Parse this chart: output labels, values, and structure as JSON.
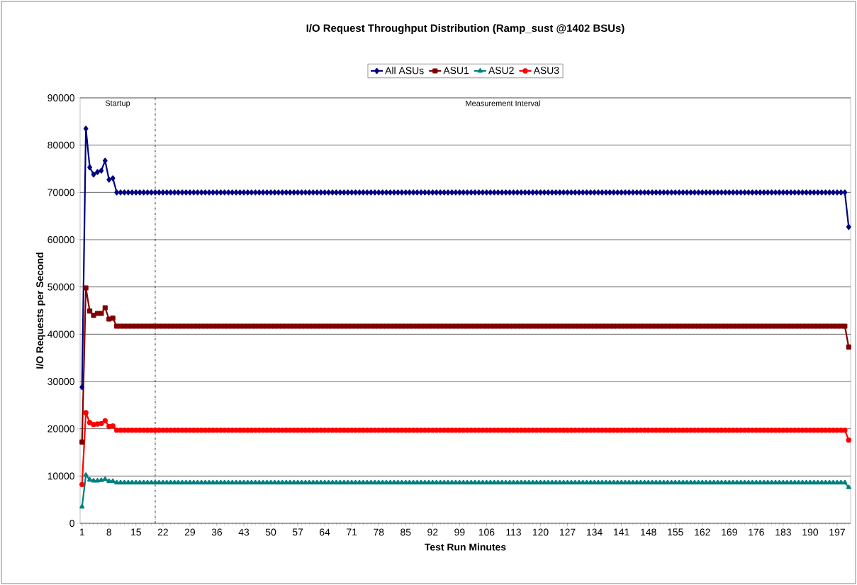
{
  "chart_data": {
    "type": "line",
    "title": "I/O Request Throughput Distribution (Ramp_sust @1402 BSUs)",
    "xlabel": "Test Run Minutes",
    "ylabel": "I/O Requests per Second",
    "x": [
      1,
      2,
      3,
      4,
      5,
      6,
      7,
      8,
      9,
      10,
      11,
      12,
      13,
      14,
      15,
      16,
      17,
      18,
      19,
      20,
      21,
      22,
      23,
      24,
      25,
      26,
      27,
      28,
      29,
      30,
      31,
      32,
      33,
      34,
      35,
      36,
      37,
      38,
      39,
      40,
      41,
      42,
      43,
      44,
      45,
      46,
      47,
      48,
      49,
      50,
      51,
      52,
      53,
      54,
      55,
      56,
      57,
      58,
      59,
      60,
      61,
      62,
      63,
      64,
      65,
      66,
      67,
      68,
      69,
      70,
      71,
      72,
      73,
      74,
      75,
      76,
      77,
      78,
      79,
      80,
      81,
      82,
      83,
      84,
      85,
      86,
      87,
      88,
      89,
      90,
      91,
      92,
      93,
      94,
      95,
      96,
      97,
      98,
      99,
      100,
      101,
      102,
      103,
      104,
      105,
      106,
      107,
      108,
      109,
      110,
      111,
      112,
      113,
      114,
      115,
      116,
      117,
      118,
      119,
      120,
      121,
      122,
      123,
      124,
      125,
      126,
      127,
      128,
      129,
      130,
      131,
      132,
      133,
      134,
      135,
      136,
      137,
      138,
      139,
      140,
      141,
      142,
      143,
      144,
      145,
      146,
      147,
      148,
      149,
      150,
      151,
      152,
      153,
      154,
      155,
      156,
      157,
      158,
      159,
      160,
      161,
      162,
      163,
      164,
      165,
      166,
      167,
      168,
      169,
      170,
      171,
      172,
      173,
      174,
      175,
      176,
      177,
      178,
      179,
      180,
      181,
      182,
      183,
      184,
      185,
      186,
      187,
      188,
      189,
      190,
      191,
      192,
      193,
      194,
      195,
      196,
      197,
      198,
      199,
      200
    ],
    "xlim": [
      0.5,
      200.5
    ],
    "xticks": [
      1,
      8,
      15,
      22,
      29,
      36,
      43,
      50,
      57,
      64,
      71,
      78,
      85,
      92,
      99,
      106,
      113,
      120,
      127,
      134,
      141,
      148,
      155,
      162,
      169,
      176,
      183,
      190,
      197
    ],
    "ylim": [
      0,
      90000
    ],
    "yticks": [
      0,
      10000,
      20000,
      30000,
      40000,
      50000,
      60000,
      70000,
      80000,
      90000
    ],
    "grid": "y",
    "legend": "top",
    "ref_lines": [
      {
        "axis": "x",
        "value": 20,
        "color": "#000000",
        "line_style": "dashed"
      }
    ],
    "annotations": [
      "Startup",
      "Measurement Interval"
    ],
    "series": [
      {
        "name": "All ASUs",
        "color": "#000080",
        "marker": "diamond",
        "values": [
          28800,
          83500,
          75300,
          73800,
          74300,
          74600,
          76700,
          72700,
          73000,
          70000,
          70000,
          70000,
          70000,
          70000,
          70000,
          70000,
          70000,
          70000,
          70000,
          70000,
          70000,
          70000,
          70000,
          70000,
          70000,
          70000,
          70000,
          70000,
          70000,
          70000,
          70000,
          70000,
          70000,
          70000,
          70000,
          70000,
          70000,
          70000,
          70000,
          70000,
          70000,
          70000,
          70000,
          70000,
          70000,
          70000,
          70000,
          70000,
          70000,
          70000,
          70000,
          70000,
          70000,
          70000,
          70000,
          70000,
          70000,
          70000,
          70000,
          70000,
          70000,
          70000,
          70000,
          70000,
          70000,
          70000,
          70000,
          70000,
          70000,
          70000,
          70000,
          70000,
          70000,
          70000,
          70000,
          70000,
          70000,
          70000,
          70000,
          70000,
          70000,
          70000,
          70000,
          70000,
          70000,
          70000,
          70000,
          70000,
          70000,
          70000,
          70000,
          70000,
          70000,
          70000,
          70000,
          70000,
          70000,
          70000,
          70000,
          70000,
          70000,
          70000,
          70000,
          70000,
          70000,
          70000,
          70000,
          70000,
          70000,
          70000,
          70000,
          70000,
          70000,
          70000,
          70000,
          70000,
          70000,
          70000,
          70000,
          70000,
          70000,
          70000,
          70000,
          70000,
          70000,
          70000,
          70000,
          70000,
          70000,
          70000,
          70000,
          70000,
          70000,
          70000,
          70000,
          70000,
          70000,
          70000,
          70000,
          70000,
          70000,
          70000,
          70000,
          70000,
          70000,
          70000,
          70000,
          70000,
          70000,
          70000,
          70000,
          70000,
          70000,
          70000,
          70000,
          70000,
          70000,
          70000,
          70000,
          70000,
          70000,
          70000,
          70000,
          70000,
          70000,
          70000,
          70000,
          70000,
          70000,
          70000,
          70000,
          70000,
          70000,
          70000,
          70000,
          70000,
          70000,
          70000,
          70000,
          70000,
          70000,
          70000,
          70000,
          70000,
          70000,
          70000,
          70000,
          70000,
          70000,
          70000,
          70000,
          70000,
          70000,
          70000,
          70000,
          70000,
          70000,
          70000,
          70000,
          62700
        ]
      },
      {
        "name": "ASU1",
        "color": "#800000",
        "marker": "square",
        "values": [
          17200,
          49800,
          44900,
          44000,
          44400,
          44400,
          45600,
          43200,
          43400,
          41700,
          41700,
          41700,
          41700,
          41700,
          41700,
          41700,
          41700,
          41700,
          41700,
          41700,
          41700,
          41700,
          41700,
          41700,
          41700,
          41700,
          41700,
          41700,
          41700,
          41700,
          41700,
          41700,
          41700,
          41700,
          41700,
          41700,
          41700,
          41700,
          41700,
          41700,
          41700,
          41700,
          41700,
          41700,
          41700,
          41700,
          41700,
          41700,
          41700,
          41700,
          41700,
          41700,
          41700,
          41700,
          41700,
          41700,
          41700,
          41700,
          41700,
          41700,
          41700,
          41700,
          41700,
          41700,
          41700,
          41700,
          41700,
          41700,
          41700,
          41700,
          41700,
          41700,
          41700,
          41700,
          41700,
          41700,
          41700,
          41700,
          41700,
          41700,
          41700,
          41700,
          41700,
          41700,
          41700,
          41700,
          41700,
          41700,
          41700,
          41700,
          41700,
          41700,
          41700,
          41700,
          41700,
          41700,
          41700,
          41700,
          41700,
          41700,
          41700,
          41700,
          41700,
          41700,
          41700,
          41700,
          41700,
          41700,
          41700,
          41700,
          41700,
          41700,
          41700,
          41700,
          41700,
          41700,
          41700,
          41700,
          41700,
          41700,
          41700,
          41700,
          41700,
          41700,
          41700,
          41700,
          41700,
          41700,
          41700,
          41700,
          41700,
          41700,
          41700,
          41700,
          41700,
          41700,
          41700,
          41700,
          41700,
          41700,
          41700,
          41700,
          41700,
          41700,
          41700,
          41700,
          41700,
          41700,
          41700,
          41700,
          41700,
          41700,
          41700,
          41700,
          41700,
          41700,
          41700,
          41700,
          41700,
          41700,
          41700,
          41700,
          41700,
          41700,
          41700,
          41700,
          41700,
          41700,
          41700,
          41700,
          41700,
          41700,
          41700,
          41700,
          41700,
          41700,
          41700,
          41700,
          41700,
          41700,
          41700,
          41700,
          41700,
          41700,
          41700,
          41700,
          41700,
          41700,
          41700,
          41700,
          41700,
          41700,
          41700,
          41700,
          41700,
          41700,
          41700,
          41700,
          41700,
          37300
        ]
      },
      {
        "name": "ASU2",
        "color": "#008080",
        "marker": "triangle",
        "values": [
          3500,
          10200,
          9200,
          9000,
          9000,
          9100,
          9300,
          8900,
          8900,
          8600,
          8600,
          8600,
          8600,
          8600,
          8600,
          8600,
          8600,
          8600,
          8600,
          8600,
          8600,
          8600,
          8600,
          8600,
          8600,
          8600,
          8600,
          8600,
          8600,
          8600,
          8600,
          8600,
          8600,
          8600,
          8600,
          8600,
          8600,
          8600,
          8600,
          8600,
          8600,
          8600,
          8600,
          8600,
          8600,
          8600,
          8600,
          8600,
          8600,
          8600,
          8600,
          8600,
          8600,
          8600,
          8600,
          8600,
          8600,
          8600,
          8600,
          8600,
          8600,
          8600,
          8600,
          8600,
          8600,
          8600,
          8600,
          8600,
          8600,
          8600,
          8600,
          8600,
          8600,
          8600,
          8600,
          8600,
          8600,
          8600,
          8600,
          8600,
          8600,
          8600,
          8600,
          8600,
          8600,
          8600,
          8600,
          8600,
          8600,
          8600,
          8600,
          8600,
          8600,
          8600,
          8600,
          8600,
          8600,
          8600,
          8600,
          8600,
          8600,
          8600,
          8600,
          8600,
          8600,
          8600,
          8600,
          8600,
          8600,
          8600,
          8600,
          8600,
          8600,
          8600,
          8600,
          8600,
          8600,
          8600,
          8600,
          8600,
          8600,
          8600,
          8600,
          8600,
          8600,
          8600,
          8600,
          8600,
          8600,
          8600,
          8600,
          8600,
          8600,
          8600,
          8600,
          8600,
          8600,
          8600,
          8600,
          8600,
          8600,
          8600,
          8600,
          8600,
          8600,
          8600,
          8600,
          8600,
          8600,
          8600,
          8600,
          8600,
          8600,
          8600,
          8600,
          8600,
          8600,
          8600,
          8600,
          8600,
          8600,
          8600,
          8600,
          8600,
          8600,
          8600,
          8600,
          8600,
          8600,
          8600,
          8600,
          8600,
          8600,
          8600,
          8600,
          8600,
          8600,
          8600,
          8600,
          8600,
          8600,
          8600,
          8600,
          8600,
          8600,
          8600,
          8600,
          8600,
          8600,
          8600,
          8600,
          8600,
          8600,
          8600,
          8600,
          8600,
          8600,
          8600,
          8600,
          7600
        ]
      },
      {
        "name": "ASU3",
        "color": "#ff0000",
        "marker": "circle",
        "values": [
          8200,
          23400,
          21300,
          20900,
          21000,
          21100,
          21700,
          20500,
          20600,
          19700,
          19700,
          19700,
          19700,
          19700,
          19700,
          19700,
          19700,
          19700,
          19700,
          19700,
          19700,
          19700,
          19700,
          19700,
          19700,
          19700,
          19700,
          19700,
          19700,
          19700,
          19700,
          19700,
          19700,
          19700,
          19700,
          19700,
          19700,
          19700,
          19700,
          19700,
          19700,
          19700,
          19700,
          19700,
          19700,
          19700,
          19700,
          19700,
          19700,
          19700,
          19700,
          19700,
          19700,
          19700,
          19700,
          19700,
          19700,
          19700,
          19700,
          19700,
          19700,
          19700,
          19700,
          19700,
          19700,
          19700,
          19700,
          19700,
          19700,
          19700,
          19700,
          19700,
          19700,
          19700,
          19700,
          19700,
          19700,
          19700,
          19700,
          19700,
          19700,
          19700,
          19700,
          19700,
          19700,
          19700,
          19700,
          19700,
          19700,
          19700,
          19700,
          19700,
          19700,
          19700,
          19700,
          19700,
          19700,
          19700,
          19700,
          19700,
          19700,
          19700,
          19700,
          19700,
          19700,
          19700,
          19700,
          19700,
          19700,
          19700,
          19700,
          19700,
          19700,
          19700,
          19700,
          19700,
          19700,
          19700,
          19700,
          19700,
          19700,
          19700,
          19700,
          19700,
          19700,
          19700,
          19700,
          19700,
          19700,
          19700,
          19700,
          19700,
          19700,
          19700,
          19700,
          19700,
          19700,
          19700,
          19700,
          19700,
          19700,
          19700,
          19700,
          19700,
          19700,
          19700,
          19700,
          19700,
          19700,
          19700,
          19700,
          19700,
          19700,
          19700,
          19700,
          19700,
          19700,
          19700,
          19700,
          19700,
          19700,
          19700,
          19700,
          19700,
          19700,
          19700,
          19700,
          19700,
          19700,
          19700,
          19700,
          19700,
          19700,
          19700,
          19700,
          19700,
          19700,
          19700,
          19700,
          19700,
          19700,
          19700,
          19700,
          19700,
          19700,
          19700,
          19700,
          19700,
          19700,
          19700,
          19700,
          19700,
          19700,
          19700,
          19700,
          19700,
          19700,
          19700,
          19700,
          17600
        ]
      }
    ]
  }
}
